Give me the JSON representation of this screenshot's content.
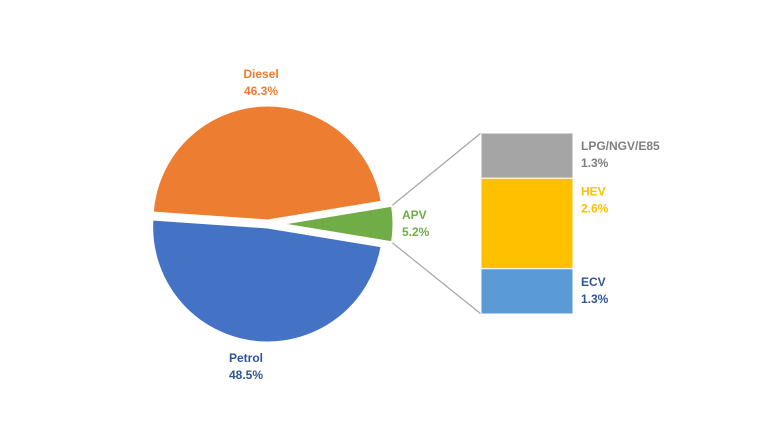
{
  "chart_data": {
    "type": "pie",
    "title": "",
    "slices": [
      {
        "label": "Diesel",
        "value": 46.3,
        "value_text": "46.3%",
        "color": "#ED7D31"
      },
      {
        "label": "APV",
        "value": 5.2,
        "value_text": "5.2%",
        "color": "#70AD47"
      },
      {
        "label": "Petrol",
        "value": 48.5,
        "value_text": "48.5%",
        "color": "#4472C4"
      }
    ],
    "breakdown": {
      "of": "APV",
      "type": "stacked-bar",
      "segments": [
        {
          "label": "LPG/NGV/E85",
          "value": 1.3,
          "value_text": "1.3%",
          "color": "#A5A5A5",
          "text_color": "#7F7F7F"
        },
        {
          "label": "HEV",
          "value": 2.6,
          "value_text": "2.6%",
          "color": "#FFC000",
          "text_color": "#FFC000"
        },
        {
          "label": "ECV",
          "value": 1.3,
          "value_text": "1.3%",
          "color": "#5B9BD5",
          "text_color": "#2F5597"
        }
      ]
    },
    "label_colors": {
      "Diesel": "#ED7D31",
      "APV": "#70AD47",
      "Petrol": "#2F5597"
    },
    "connector_color": "#A6A6A6"
  }
}
